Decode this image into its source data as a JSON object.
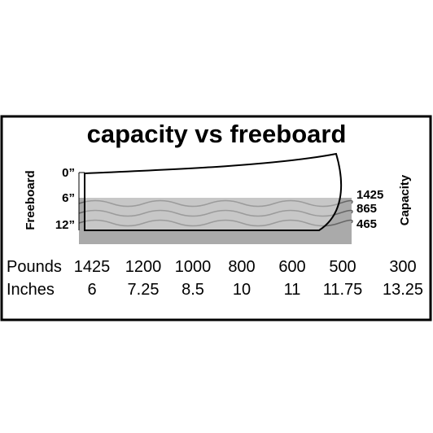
{
  "title": "capacity vs freeboard",
  "freeboard": {
    "label": "Freeboard",
    "ticks": [
      "0”",
      "6”",
      "12”"
    ]
  },
  "capacity": {
    "label": "Capacity",
    "ticks": [
      "1425",
      "865",
      "465"
    ]
  },
  "table": {
    "rows": [
      {
        "label": "Pounds",
        "values": [
          "1425",
          "1200",
          "1000",
          "800",
          "600",
          "500",
          "300"
        ]
      },
      {
        "label": "Inches",
        "values": [
          "6",
          "7.25",
          "8.5",
          "10",
          "11",
          "11.75",
          "13.25"
        ]
      }
    ]
  }
}
